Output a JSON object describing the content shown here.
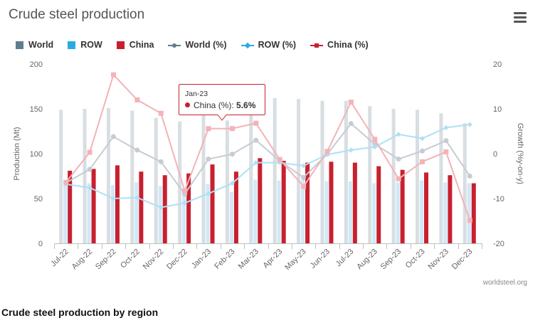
{
  "title": "Crude steel production",
  "menu_icon": "hamburger-menu-icon",
  "source": "worldsteel.org",
  "caption": "Crude steel production by region",
  "colors": {
    "world_bar": "#d9dee2",
    "row_bar": "#cfe9f7",
    "china_bar": "#c8202f",
    "world_line": "#c6ccd2",
    "row_line": "#aee0f5",
    "china_line": "#f3b3b8",
    "legend_world": "#5f7d8f",
    "legend_row": "#29abe2",
    "legend_china": "#c8202f"
  },
  "legend": [
    {
      "label": "World",
      "kind": "bar",
      "color": "#5f7d8f"
    },
    {
      "label": "ROW",
      "kind": "bar",
      "color": "#29abe2"
    },
    {
      "label": "China",
      "kind": "bar",
      "color": "#c8202f"
    },
    {
      "label": "World (%)",
      "kind": "line",
      "marker": "circle",
      "color": "#5f7d8f"
    },
    {
      "label": "ROW (%)",
      "kind": "line",
      "marker": "diamond",
      "color": "#29abe2"
    },
    {
      "label": "China (%)",
      "kind": "line",
      "marker": "square",
      "color": "#c8202f"
    }
  ],
  "tooltip": {
    "category": "Jan-23",
    "series": "China (%)",
    "value": "5.6%",
    "color": "#c8202f"
  },
  "chart_data": {
    "type": "bar",
    "title": "Crude steel production",
    "categories": [
      "Jul-22",
      "Aug-22",
      "Sep-22",
      "Oct-22",
      "Nov-22",
      "Dec-22",
      "Jan-23",
      "Feb-23",
      "Mar-23",
      "Apr-23",
      "May-23",
      "Jun-23",
      "Jul-23",
      "Aug-23",
      "Sep-23",
      "Oct-23",
      "Nov-23",
      "Dec-23"
    ],
    "ylabel": "Production (Mt)",
    "ylim": [
      0,
      200
    ],
    "yticks": [
      0,
      50,
      100,
      150,
      200
    ],
    "y2label": "Growth (%y-on-y)",
    "y2lim": [
      -20,
      20
    ],
    "y2ticks": [
      -20,
      -10,
      0,
      10,
      20
    ],
    "series": [
      {
        "name": "World",
        "axis": "left",
        "kind": "bar",
        "values": [
          149,
          150,
          151,
          148,
          140,
          136,
          145,
          137,
          170,
          162,
          161,
          159,
          159,
          153,
          150,
          149,
          145,
          134
        ]
      },
      {
        "name": "ROW",
        "axis": "left",
        "kind": "bar",
        "values": [
          67,
          67,
          65,
          68,
          64,
          57,
          66,
          57,
          71,
          70,
          71,
          69,
          69,
          67,
          68,
          70,
          68,
          67
        ]
      },
      {
        "name": "China",
        "axis": "left",
        "kind": "bar",
        "values": [
          81,
          83,
          87,
          80,
          76,
          78,
          88,
          80,
          95,
          92,
          90,
          91,
          90,
          86,
          82,
          79,
          76,
          67
        ]
      },
      {
        "name": "World (%)",
        "axis": "right",
        "kind": "line",
        "marker": "circle",
        "values": [
          -6.5,
          -3.5,
          3.8,
          0.8,
          -1.8,
          -9.0,
          -1.2,
          -0.1,
          3.0,
          -1.6,
          -5.3,
          -0.1,
          6.7,
          2.1,
          -1.2,
          0.6,
          2.9,
          -5.0
        ]
      },
      {
        "name": "ROW (%)",
        "axis": "right",
        "kind": "line",
        "marker": "diamond",
        "values": [
          -6.8,
          -7.6,
          -10.0,
          -9.8,
          -12.0,
          -11.0,
          -8.9,
          -6.6,
          -2.0,
          -2.0,
          -2.7,
          -0.2,
          0.8,
          1.5,
          4.3,
          3.4,
          5.8,
          6.5
        ]
      },
      {
        "name": "China (%)",
        "axis": "right",
        "kind": "line",
        "marker": "square",
        "values": [
          -6.4,
          0.3,
          17.6,
          12.0,
          9.0,
          -8.3,
          5.6,
          5.6,
          6.8,
          -1.3,
          -7.3,
          0.5,
          11.5,
          3.2,
          -5.6,
          -1.8,
          0.4,
          -14.9
        ]
      }
    ]
  }
}
